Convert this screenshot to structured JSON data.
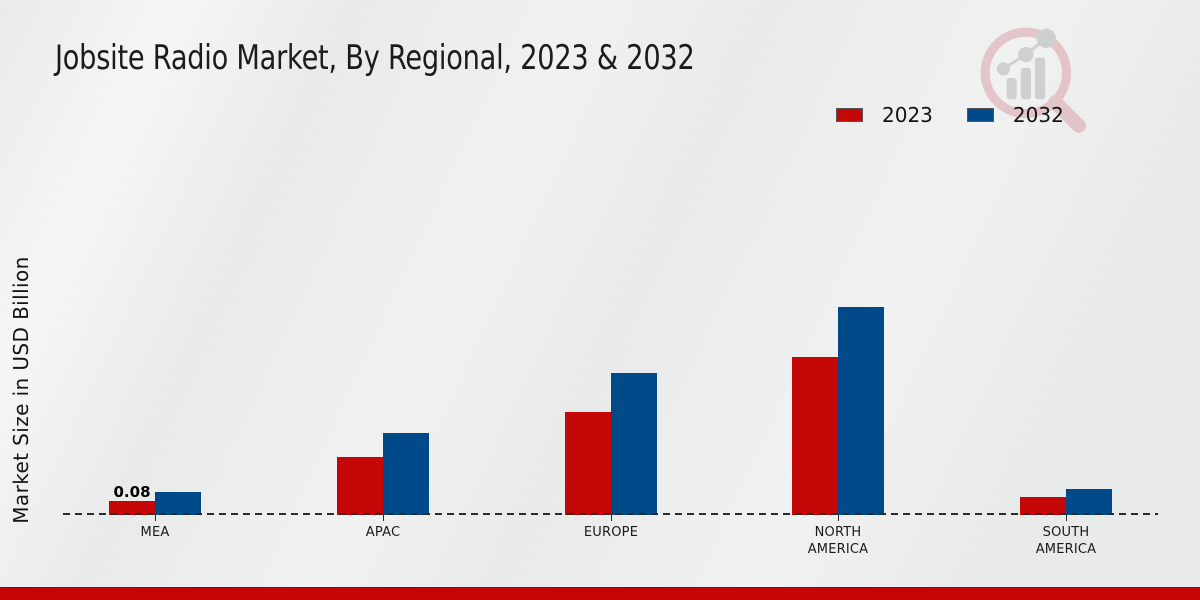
{
  "title": "Jobsite Radio Market, By Regional, 2023 & 2032",
  "y_axis_label": "Market Size in USD Billion",
  "colors": {
    "series_2023": "#c40707",
    "series_2032": "#004a8a",
    "footer_bar": "#c50404",
    "baseline": "#2b2b2b",
    "background": "#e9eaea",
    "watermark_pink": "#d99aa2",
    "watermark_gray": "#aeb0b4"
  },
  "legend": {
    "items": [
      {
        "label": "2023",
        "color": "#c40707"
      },
      {
        "label": "2032",
        "color": "#004a8a"
      }
    ]
  },
  "chart_data": {
    "type": "bar",
    "title": "Jobsite Radio Market, By Regional, 2023 & 2032",
    "xlabel": "",
    "ylabel": "Market Size in USD Billion",
    "categories": [
      "MEA",
      "APAC",
      "EUROPE",
      "NORTH AMERICA",
      "SOUTH AMERICA"
    ],
    "series": [
      {
        "name": "2023",
        "color": "#c40707",
        "values": [
          0.08,
          0.33,
          0.59,
          0.9,
          0.1
        ]
      },
      {
        "name": "2032",
        "color": "#004a8a",
        "values": [
          0.13,
          0.47,
          0.81,
          1.19,
          0.15
        ]
      }
    ],
    "annotations": [
      {
        "series": "2023",
        "category": "MEA",
        "text": "0.08"
      }
    ],
    "ylim": [
      0,
      1.3
    ],
    "grid": false,
    "y_axis_ticks_visible": false,
    "baseline_style": "dashed",
    "legend_position": "top-right"
  },
  "watermark_icon": "magnifier-trend-chart-logo"
}
